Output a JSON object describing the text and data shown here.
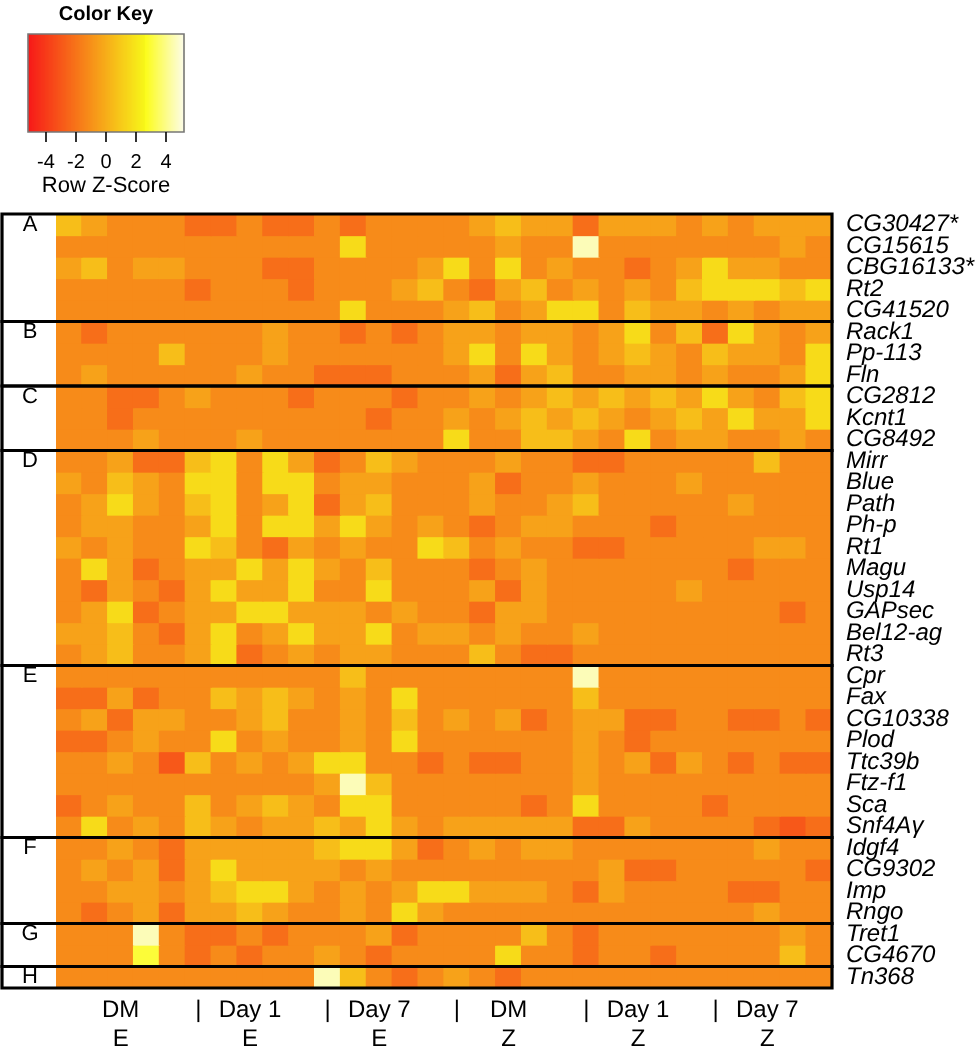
{
  "chart_data": {
    "type": "heatmap",
    "legend_title": "Color Key",
    "clabel": "Row Z-Score",
    "clim": [
      -5.2,
      5.2
    ],
    "cticks": [
      -4,
      -2,
      0,
      2,
      4
    ],
    "categories": [
      null,
      null,
      "DM\nE",
      null,
      null,
      "|",
      null,
      "Day 1\nE",
      null,
      null,
      "|",
      null,
      "Day 7\nE",
      null,
      null,
      "|",
      null,
      "DM\nZ",
      null,
      null,
      "|",
      null,
      "Day 1\nZ",
      null,
      null,
      "|",
      null,
      "Day 7\nZ",
      null,
      null
    ],
    "y_categories": [
      "CG30427*",
      "CG15615",
      "CBG16133*",
      "Rt2",
      "CG41520",
      "Rack1",
      "Pp-113",
      "Fln",
      "CG2812",
      "Kcnt1",
      "CG8492",
      "Mirr",
      "Blue",
      "Path",
      "Ph-p",
      "Rt1",
      "Magu",
      "Usp14",
      "GAPsec",
      "Bel12-ag",
      "Rt3",
      "Cpr",
      "Fax",
      "CG10338",
      "Plod",
      "Ttc39b",
      "Ftz-f1",
      "Sca",
      "Snf4Aγ",
      "Idgf4",
      "CG9302",
      "Imp",
      "Rngo",
      "Tret1",
      "CG4670",
      "Tn368"
    ],
    "y2_categories": [
      "A",
      null,
      null,
      null,
      null,
      "B",
      null,
      null,
      "C",
      null,
      null,
      "D",
      null,
      null,
      null,
      null,
      null,
      null,
      null,
      null,
      null,
      "E",
      null,
      null,
      null,
      null,
      null,
      null,
      null,
      "F",
      null,
      null,
      null,
      "G",
      null,
      "H"
    ],
    "cells": [
      [
        0.6,
        -0.4,
        -1.2,
        -1.2,
        -1.2,
        -2.2,
        -2.2,
        -1.2,
        -2.2,
        -2.2,
        -1.2,
        -2.2,
        -1.2,
        -1.2,
        -1.2,
        -1.2,
        -0.4,
        0.6,
        -0.4,
        -0.4,
        -2.2,
        -0.4,
        -0.4,
        -0.4,
        -1.2,
        -0.4,
        -1.2,
        -0.4,
        -0.4,
        -0.4
      ],
      [
        -1.2,
        -1.2,
        -1.2,
        -1.2,
        -1.2,
        -1.2,
        -1.2,
        -1.2,
        -1.2,
        -1.2,
        -1.2,
        1.6,
        -1.2,
        -1.2,
        -1.2,
        -1.2,
        -1.2,
        -0.4,
        -1.2,
        -1.2,
        4.6,
        -1.2,
        -1.2,
        -1.2,
        -1.2,
        -1.2,
        -1.2,
        -1.2,
        -0.4,
        -1.2
      ],
      [
        -0.4,
        0.6,
        -1.2,
        -0.4,
        -0.4,
        -1.2,
        -1.2,
        -1.2,
        -2.2,
        -2.2,
        -1.2,
        -1.2,
        -1.2,
        -1.2,
        -0.4,
        1.6,
        -1.2,
        1.6,
        -1.2,
        -0.4,
        -1.2,
        -1.2,
        -2.2,
        -1.2,
        -0.4,
        1.6,
        -0.4,
        -0.4,
        -1.2,
        -1.2
      ],
      [
        -1.2,
        -1.2,
        -1.2,
        -1.2,
        -1.2,
        -2.2,
        -1.2,
        -1.2,
        -1.2,
        -2.2,
        -1.2,
        -1.2,
        -1.2,
        -0.4,
        0.6,
        -1.2,
        -2.2,
        -0.4,
        0.6,
        -1.2,
        -0.4,
        -1.2,
        -0.4,
        -1.2,
        0.6,
        1.6,
        1.6,
        1.6,
        0.6,
        1.6
      ],
      [
        -1.2,
        -1.2,
        -1.2,
        -1.2,
        -1.2,
        -1.2,
        -1.2,
        -1.2,
        -1.2,
        -1.2,
        -1.2,
        1.6,
        -1.2,
        -1.2,
        -1.2,
        -0.4,
        0.6,
        -1.2,
        -0.4,
        1.6,
        1.6,
        -1.2,
        0.6,
        -0.4,
        -0.4,
        -1.2,
        -0.4,
        -1.2,
        -0.4,
        -0.4
      ],
      [
        -1.2,
        -2.2,
        -1.2,
        -1.2,
        -1.2,
        -1.2,
        -1.2,
        -1.2,
        -0.4,
        -1.2,
        -1.2,
        -2.2,
        -1.2,
        -2.2,
        -1.2,
        -0.4,
        -0.4,
        -1.2,
        -0.4,
        -0.4,
        -1.2,
        -0.4,
        1.6,
        -1.2,
        0.6,
        -2.2,
        1.6,
        -0.4,
        -1.2,
        -0.4
      ],
      [
        -1.2,
        -1.2,
        -1.2,
        -1.2,
        0.6,
        -1.2,
        -1.2,
        -1.2,
        -0.4,
        -1.2,
        -1.2,
        -1.2,
        -1.2,
        -1.2,
        -1.2,
        -0.4,
        1.6,
        -1.2,
        1.6,
        -0.4,
        -1.2,
        -0.4,
        0.6,
        -0.4,
        -1.2,
        0.6,
        -0.4,
        -0.4,
        -1.2,
        1.6
      ],
      [
        -1.2,
        -0.4,
        -1.2,
        -1.2,
        -1.2,
        -1.2,
        -1.2,
        -0.4,
        -1.2,
        -1.2,
        -2.2,
        -2.2,
        -2.2,
        -1.2,
        -1.2,
        -1.2,
        -0.4,
        -2.2,
        -0.4,
        0.6,
        -1.2,
        -1.2,
        -0.4,
        -0.4,
        -1.2,
        -0.4,
        -1.2,
        -1.2,
        -0.4,
        1.6
      ],
      [
        -1.2,
        -1.2,
        -2.2,
        -2.2,
        -1.2,
        -0.4,
        -1.2,
        -1.2,
        -1.2,
        -2.2,
        -1.2,
        -1.2,
        -1.2,
        -2.2,
        -1.2,
        -1.2,
        -0.4,
        -1.2,
        -0.4,
        0.6,
        -0.4,
        0.6,
        -0.4,
        0.6,
        -0.4,
        1.6,
        -0.4,
        -1.2,
        0.6,
        1.6
      ],
      [
        -1.2,
        -1.2,
        -2.2,
        -1.2,
        -1.2,
        -1.2,
        -1.2,
        -1.2,
        -1.2,
        -1.2,
        -1.2,
        -1.2,
        -2.2,
        -1.2,
        -1.2,
        -0.4,
        -1.2,
        -0.4,
        0.6,
        -0.4,
        0.6,
        -0.4,
        -1.2,
        -0.4,
        0.6,
        -0.4,
        1.6,
        -0.4,
        -0.4,
        1.6
      ],
      [
        -1.2,
        -1.2,
        -1.2,
        -0.4,
        -1.2,
        -1.2,
        -1.2,
        -0.4,
        -1.2,
        -1.2,
        -1.2,
        -1.2,
        -1.2,
        -1.2,
        -1.2,
        1.6,
        -1.2,
        -1.2,
        0.6,
        0.6,
        -0.4,
        -1.2,
        1.6,
        -1.2,
        -0.4,
        -0.4,
        -1.2,
        -1.2,
        -0.4,
        -1.2
      ],
      [
        -1.2,
        -1.2,
        -0.4,
        -2.2,
        -2.2,
        0.6,
        1.6,
        -1.2,
        1.6,
        -0.4,
        -2.2,
        -1.2,
        0.6,
        -0.4,
        -1.2,
        -1.2,
        -1.2,
        -0.4,
        -1.2,
        -1.2,
        -2.2,
        -2.2,
        -1.2,
        -1.2,
        -1.2,
        -1.2,
        -1.2,
        0.6,
        -1.2,
        -1.2
      ],
      [
        -0.4,
        -1.2,
        0.6,
        -0.4,
        -1.2,
        1.6,
        1.6,
        -1.2,
        1.6,
        1.6,
        -1.2,
        -0.4,
        -0.4,
        -1.2,
        -1.2,
        -1.2,
        -0.4,
        -2.2,
        -1.2,
        -1.2,
        -0.4,
        -1.2,
        -1.2,
        -1.2,
        -0.4,
        -1.2,
        -1.2,
        -1.2,
        -1.2,
        -1.2
      ],
      [
        -1.2,
        -0.4,
        1.6,
        -0.4,
        -1.2,
        0.6,
        1.6,
        -1.2,
        -0.4,
        1.6,
        -2.2,
        -0.4,
        0.6,
        -1.2,
        -1.2,
        -1.2,
        -0.4,
        -1.2,
        -1.2,
        -0.4,
        0.6,
        -1.2,
        -1.2,
        -1.2,
        -1.2,
        -1.2,
        -0.4,
        -1.2,
        -1.2,
        -1.2
      ],
      [
        -1.2,
        -0.4,
        -0.4,
        -1.2,
        -1.2,
        -0.4,
        1.6,
        -1.2,
        1.6,
        1.6,
        -0.4,
        1.6,
        -0.4,
        -1.2,
        -0.4,
        -1.2,
        -2.2,
        -1.2,
        -0.4,
        -0.4,
        -1.2,
        -1.2,
        -1.2,
        -2.2,
        -1.2,
        -1.2,
        -1.2,
        -1.2,
        -1.2,
        -1.2
      ],
      [
        -0.4,
        -1.2,
        -0.4,
        -1.2,
        -1.2,
        1.6,
        0.6,
        -1.2,
        -2.2,
        -0.4,
        -1.2,
        -0.4,
        -1.2,
        -1.2,
        1.6,
        0.6,
        -1.2,
        -0.4,
        -1.2,
        -1.2,
        -2.2,
        -2.2,
        -1.2,
        -1.2,
        -1.2,
        -1.2,
        -1.2,
        -0.4,
        -0.4,
        -1.2
      ],
      [
        -1.2,
        1.6,
        -0.4,
        -2.2,
        -1.2,
        -0.4,
        -0.4,
        1.6,
        -0.4,
        1.6,
        -0.4,
        -1.2,
        0.6,
        -1.2,
        -1.2,
        -1.2,
        -2.2,
        -1.2,
        -0.4,
        -1.2,
        -1.2,
        -1.2,
        -1.2,
        -1.2,
        -1.2,
        -1.2,
        -2.2,
        -1.2,
        -1.2,
        -1.2
      ],
      [
        -1.2,
        -2.2,
        -0.4,
        -1.2,
        -2.2,
        -0.4,
        1.6,
        -0.4,
        -0.4,
        1.6,
        -1.2,
        -1.2,
        1.6,
        -1.2,
        -1.2,
        -1.2,
        -0.4,
        -2.2,
        -0.4,
        -1.2,
        -1.2,
        -1.2,
        -1.2,
        -1.2,
        -0.4,
        -1.2,
        -1.2,
        -1.2,
        -1.2,
        -1.2
      ],
      [
        -1.2,
        -0.4,
        1.6,
        -2.2,
        -1.2,
        -0.4,
        -0.4,
        1.6,
        1.6,
        -0.4,
        -0.4,
        -0.4,
        -1.2,
        -0.4,
        -1.2,
        -1.2,
        -2.2,
        -0.4,
        -0.4,
        -1.2,
        -1.2,
        -1.2,
        -1.2,
        -1.2,
        -1.2,
        -1.2,
        -1.2,
        -1.2,
        -2.2,
        -1.2
      ],
      [
        -0.4,
        -0.4,
        0.6,
        -1.2,
        -2.2,
        -0.4,
        1.6,
        -1.2,
        -0.4,
        1.6,
        -0.4,
        -0.4,
        1.6,
        -1.2,
        -0.4,
        -0.4,
        -1.2,
        -0.4,
        -1.2,
        -1.2,
        -0.4,
        -1.2,
        -1.2,
        -1.2,
        -1.2,
        -1.2,
        -1.2,
        -1.2,
        -1.2,
        -1.2
      ],
      [
        -1.2,
        -0.4,
        0.6,
        -1.2,
        -1.2,
        -0.4,
        1.6,
        -2.2,
        -1.2,
        -0.4,
        -1.2,
        -0.4,
        -0.4,
        -1.2,
        -1.2,
        -1.2,
        0.6,
        -1.2,
        -2.2,
        -2.2,
        -1.2,
        -1.2,
        -1.2,
        -1.2,
        -1.2,
        -1.2,
        -1.2,
        -1.2,
        -1.2,
        -1.2
      ],
      [
        -1.2,
        -1.2,
        -1.2,
        -1.2,
        -1.2,
        -1.2,
        -1.2,
        -1.2,
        -1.2,
        -1.2,
        -1.2,
        0.6,
        -1.2,
        -1.2,
        -1.2,
        -1.2,
        -1.2,
        -1.2,
        -1.2,
        -1.2,
        4.6,
        -1.2,
        -1.2,
        -1.2,
        -1.2,
        -1.2,
        -1.2,
        -1.2,
        -1.2,
        -1.2
      ],
      [
        -2.2,
        -2.2,
        -0.4,
        -2.2,
        -1.2,
        -1.2,
        0.6,
        -0.4,
        0.6,
        -0.4,
        -1.2,
        -0.4,
        -1.2,
        1.6,
        -1.2,
        -1.2,
        -1.2,
        -1.2,
        -1.2,
        -1.2,
        0.6,
        -1.2,
        -1.2,
        -1.2,
        -1.2,
        -1.2,
        -1.2,
        -1.2,
        -1.2,
        -1.2
      ],
      [
        -1.2,
        -0.4,
        -2.2,
        -0.4,
        -0.4,
        -1.2,
        -1.2,
        -0.4,
        0.6,
        -1.2,
        -1.2,
        -0.4,
        -1.2,
        0.6,
        -1.2,
        -0.4,
        -1.2,
        -0.4,
        -2.2,
        -1.2,
        -0.4,
        -0.4,
        -2.2,
        -2.2,
        -1.2,
        -1.2,
        -2.2,
        -2.2,
        -1.2,
        -2.2
      ],
      [
        -2.2,
        -2.2,
        -1.2,
        -0.4,
        -1.2,
        -1.2,
        1.6,
        -1.2,
        -0.4,
        -1.2,
        -1.2,
        -0.4,
        -1.2,
        1.6,
        -1.2,
        -1.2,
        -1.2,
        -1.2,
        -1.2,
        -1.2,
        -0.4,
        -1.2,
        -2.2,
        -1.2,
        -1.2,
        -1.2,
        -1.2,
        -1.2,
        -1.2,
        -1.2
      ],
      [
        -1.2,
        -1.2,
        -0.4,
        -1.2,
        -3,
        0.6,
        -1.2,
        -0.4,
        -1.2,
        -0.4,
        1.6,
        1.6,
        -1.2,
        -1.2,
        -2.2,
        -1.2,
        -2.2,
        -2.2,
        -1.2,
        -1.2,
        -0.4,
        -1.2,
        -0.4,
        -2.2,
        -0.4,
        -1.2,
        -2.2,
        -1.2,
        -2.2,
        -2.2
      ],
      [
        -1.2,
        -1.2,
        -1.2,
        -1.2,
        -1.2,
        -1.2,
        -1.2,
        -1.2,
        -1.2,
        -1.2,
        -0.4,
        4.6,
        0.6,
        -1.2,
        -1.2,
        -1.2,
        -1.2,
        -1.2,
        -1.2,
        -1.2,
        -0.4,
        -1.2,
        -1.2,
        -1.2,
        -1.2,
        -1.2,
        -1.2,
        -1.2,
        -1.2,
        -1.2
      ],
      [
        -2.2,
        -1.2,
        -0.4,
        -1.2,
        -1.2,
        0.6,
        -1.2,
        -0.4,
        0.6,
        -0.4,
        -1.2,
        1.6,
        1.6,
        -1.2,
        -1.2,
        -1.2,
        -1.2,
        -1.2,
        -2.2,
        -1.2,
        1.6,
        -1.2,
        -1.2,
        -1.2,
        -1.2,
        -2.2,
        -1.2,
        -1.2,
        -1.2,
        -1.2
      ],
      [
        -1.2,
        1.6,
        -1.2,
        -0.4,
        -1.2,
        0.6,
        -0.4,
        -1.2,
        -0.4,
        -0.4,
        0.6,
        -0.4,
        1.6,
        -0.4,
        -1.2,
        -0.4,
        -0.4,
        -0.4,
        -0.4,
        -0.4,
        -2.2,
        -2.2,
        -0.4,
        -1.2,
        -1.2,
        -1.2,
        -1.2,
        -2.2,
        -3,
        -2.2
      ],
      [
        -1.2,
        -1.2,
        -0.4,
        -1.2,
        -2.2,
        -0.4,
        -0.4,
        -0.4,
        -0.4,
        -0.4,
        0.6,
        1.6,
        1.6,
        -0.4,
        -2.2,
        -1.2,
        -0.4,
        -1.2,
        -0.4,
        -0.4,
        -1.2,
        -1.2,
        -1.2,
        -1.2,
        -1.2,
        -1.2,
        -1.2,
        -0.4,
        -1.2,
        -1.2
      ],
      [
        -1.2,
        -0.4,
        -1.2,
        -0.4,
        -2.2,
        -0.4,
        1.6,
        -0.4,
        -0.4,
        -0.4,
        -0.4,
        -1.2,
        -0.4,
        -1.2,
        -1.2,
        -1.2,
        -1.2,
        -1.2,
        -1.2,
        -1.2,
        -1.2,
        -0.4,
        -2.2,
        -2.2,
        -1.2,
        -1.2,
        -1.2,
        -1.2,
        -1.2,
        -2.2
      ],
      [
        -1.2,
        -1.2,
        -0.4,
        -0.4,
        -1.2,
        -0.4,
        0.6,
        1.6,
        1.6,
        -0.4,
        -1.2,
        -0.4,
        -1.2,
        -0.4,
        1.6,
        1.6,
        -0.4,
        -0.4,
        -0.4,
        -1.2,
        -2.2,
        -0.4,
        -1.2,
        -1.2,
        -1.2,
        -1.2,
        -2.2,
        -2.2,
        -1.2,
        -1.2
      ],
      [
        -1.2,
        -2.2,
        -1.2,
        -0.4,
        -2.2,
        -0.4,
        -0.4,
        0.6,
        -0.4,
        -1.2,
        -1.2,
        -0.4,
        -1.2,
        1.6,
        -0.4,
        -1.2,
        -1.2,
        -1.2,
        -1.2,
        -1.2,
        -1.2,
        -1.2,
        -1.2,
        -1.2,
        -1.2,
        -1.2,
        -1.2,
        -0.4,
        -1.2,
        -1.2
      ],
      [
        -1.2,
        -1.2,
        -1.2,
        4.6,
        -1.2,
        -2.2,
        -2.2,
        -1.2,
        -2.2,
        -1.2,
        -1.2,
        -1.2,
        -0.4,
        -2.2,
        -1.2,
        -1.2,
        -1.2,
        -1.2,
        0.6,
        -1.2,
        -2.2,
        -1.2,
        -1.2,
        -1.2,
        -1.2,
        -1.2,
        -1.2,
        -1.2,
        -0.4,
        -1.2
      ],
      [
        -1.2,
        -1.2,
        -1.2,
        3,
        -1.2,
        -2.2,
        -1.2,
        -2.2,
        -1.2,
        -1.2,
        -0.4,
        -1.2,
        -2.2,
        -1.2,
        -1.2,
        -1.2,
        -1.2,
        1.6,
        -1.2,
        -1.2,
        -2.2,
        -1.2,
        -1.2,
        -2.2,
        -1.2,
        -1.2,
        -1.2,
        -1.2,
        0.6,
        -1.2
      ],
      [
        -1.2,
        -1.2,
        -1.2,
        -1.2,
        -1.2,
        -1.2,
        -1.2,
        -1.2,
        -1.2,
        -1.2,
        4.6,
        0.6,
        -1.2,
        -2.2,
        -1.2,
        -0.4,
        -1.2,
        -2.2,
        -1.2,
        -1.2,
        -1.2,
        -1.2,
        -1.2,
        -1.2,
        -1.2,
        -1.2,
        -1.2,
        -1.2,
        -1.2,
        -1.2
      ]
    ]
  }
}
